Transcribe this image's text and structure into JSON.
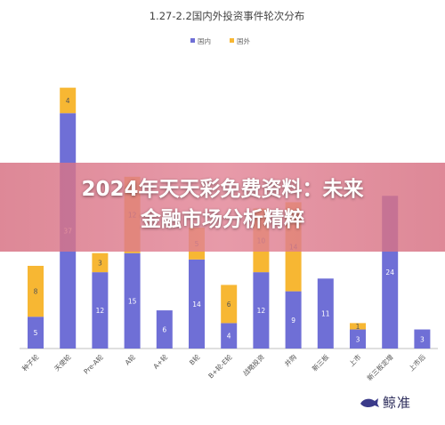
{
  "overlay": {
    "banner_text": "2024年天天彩免费资料：未来\n金融市场分析精粹"
  },
  "logo": {
    "text": "鲸准",
    "icon": "whale-icon"
  },
  "colors": {
    "domestic": "#6f6fd6",
    "foreign": "#f7b733"
  },
  "chart_data": {
    "type": "bar",
    "stacked": true,
    "title": "1.27-2.2国内外投资事件轮次分布",
    "legend": {
      "position": "top",
      "entries": [
        "国内",
        "国外"
      ]
    },
    "categories": [
      "种子轮",
      "天使轮",
      "Pre-A轮",
      "A轮",
      "A+轮",
      "B轮",
      "B+轮-E轮",
      "战略投资",
      "并购",
      "新三板",
      "上市",
      "新三板定增",
      "上市后"
    ],
    "series": [
      {
        "name": "国内",
        "color": "#6f6fd6",
        "values": [
          5,
          37,
          12,
          15,
          6,
          14,
          4,
          12,
          9,
          11,
          3,
          24,
          3
        ]
      },
      {
        "name": "国外",
        "color": "#f7b733",
        "values": [
          8,
          4,
          3,
          12,
          0,
          5,
          6,
          10,
          14,
          0,
          1,
          0,
          0
        ]
      }
    ],
    "data_labels": [
      [
        "5",
        "37",
        "12",
        "15",
        "6",
        "14",
        "4",
        "12",
        "9",
        "11",
        "3",
        "24",
        "3"
      ],
      [
        "8",
        "4",
        "3",
        "12",
        "",
        "5",
        "6",
        "10",
        "14",
        "",
        "1",
        "",
        ""
      ]
    ],
    "ylim": [
      0,
      45
    ],
    "grid": false
  }
}
